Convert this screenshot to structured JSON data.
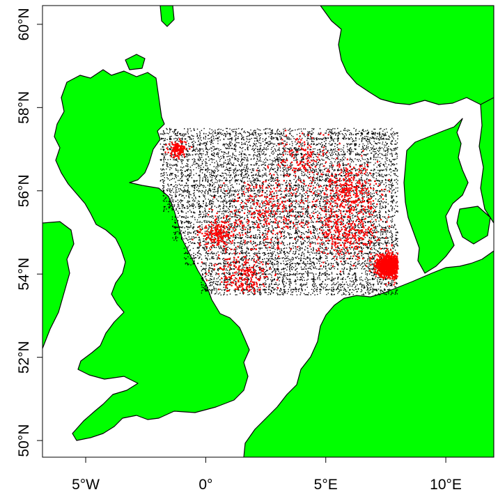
{
  "map": {
    "colors": {
      "land": "#00ff00",
      "coastline": "#000000",
      "sea": "#ffffff",
      "points_a": "#000000",
      "points_b": "#ff0000"
    },
    "x_axis": {
      "range_lon": [
        -6.8,
        12.0
      ],
      "ticks": [
        {
          "value": -5,
          "label": "5°W"
        },
        {
          "value": 0,
          "label": "0°"
        },
        {
          "value": 5,
          "label": "5°E"
        },
        {
          "value": 10,
          "label": "10°E"
        }
      ]
    },
    "y_axis": {
      "range_lat": [
        49.6,
        60.45
      ],
      "ticks": [
        {
          "value": 50,
          "label": "50°N"
        },
        {
          "value": 52,
          "label": "52°N"
        },
        {
          "value": 54,
          "label": "54°N"
        },
        {
          "value": 56,
          "label": "56°N"
        },
        {
          "value": 58,
          "label": "58°N"
        },
        {
          "value": 60,
          "label": "60°N"
        }
      ]
    },
    "sampling_region": {
      "lon_range": [
        -1.9,
        8.0
      ],
      "lat_range": [
        53.5,
        57.5
      ]
    },
    "point_density": {
      "black_points": 9000,
      "red_points": 2600
    },
    "red_clusters": [
      {
        "lon": 7.6,
        "lat": 54.2,
        "spread": 0.45,
        "weight": 0.34
      },
      {
        "lon": 5.8,
        "lat": 55.0,
        "spread": 1.2,
        "weight": 0.14
      },
      {
        "lon": 6.0,
        "lat": 56.0,
        "spread": 1.0,
        "weight": 0.12
      },
      {
        "lon": 1.5,
        "lat": 54.0,
        "spread": 0.9,
        "weight": 0.1
      },
      {
        "lon": 0.5,
        "lat": 55.0,
        "spread": 0.6,
        "weight": 0.08
      },
      {
        "lon": 2.5,
        "lat": 55.5,
        "spread": 1.5,
        "weight": 0.12
      },
      {
        "lon": -1.2,
        "lat": 57.0,
        "spread": 0.3,
        "weight": 0.05
      },
      {
        "lon": 4.0,
        "lat": 56.8,
        "spread": 1.0,
        "weight": 0.05
      }
    ]
  }
}
